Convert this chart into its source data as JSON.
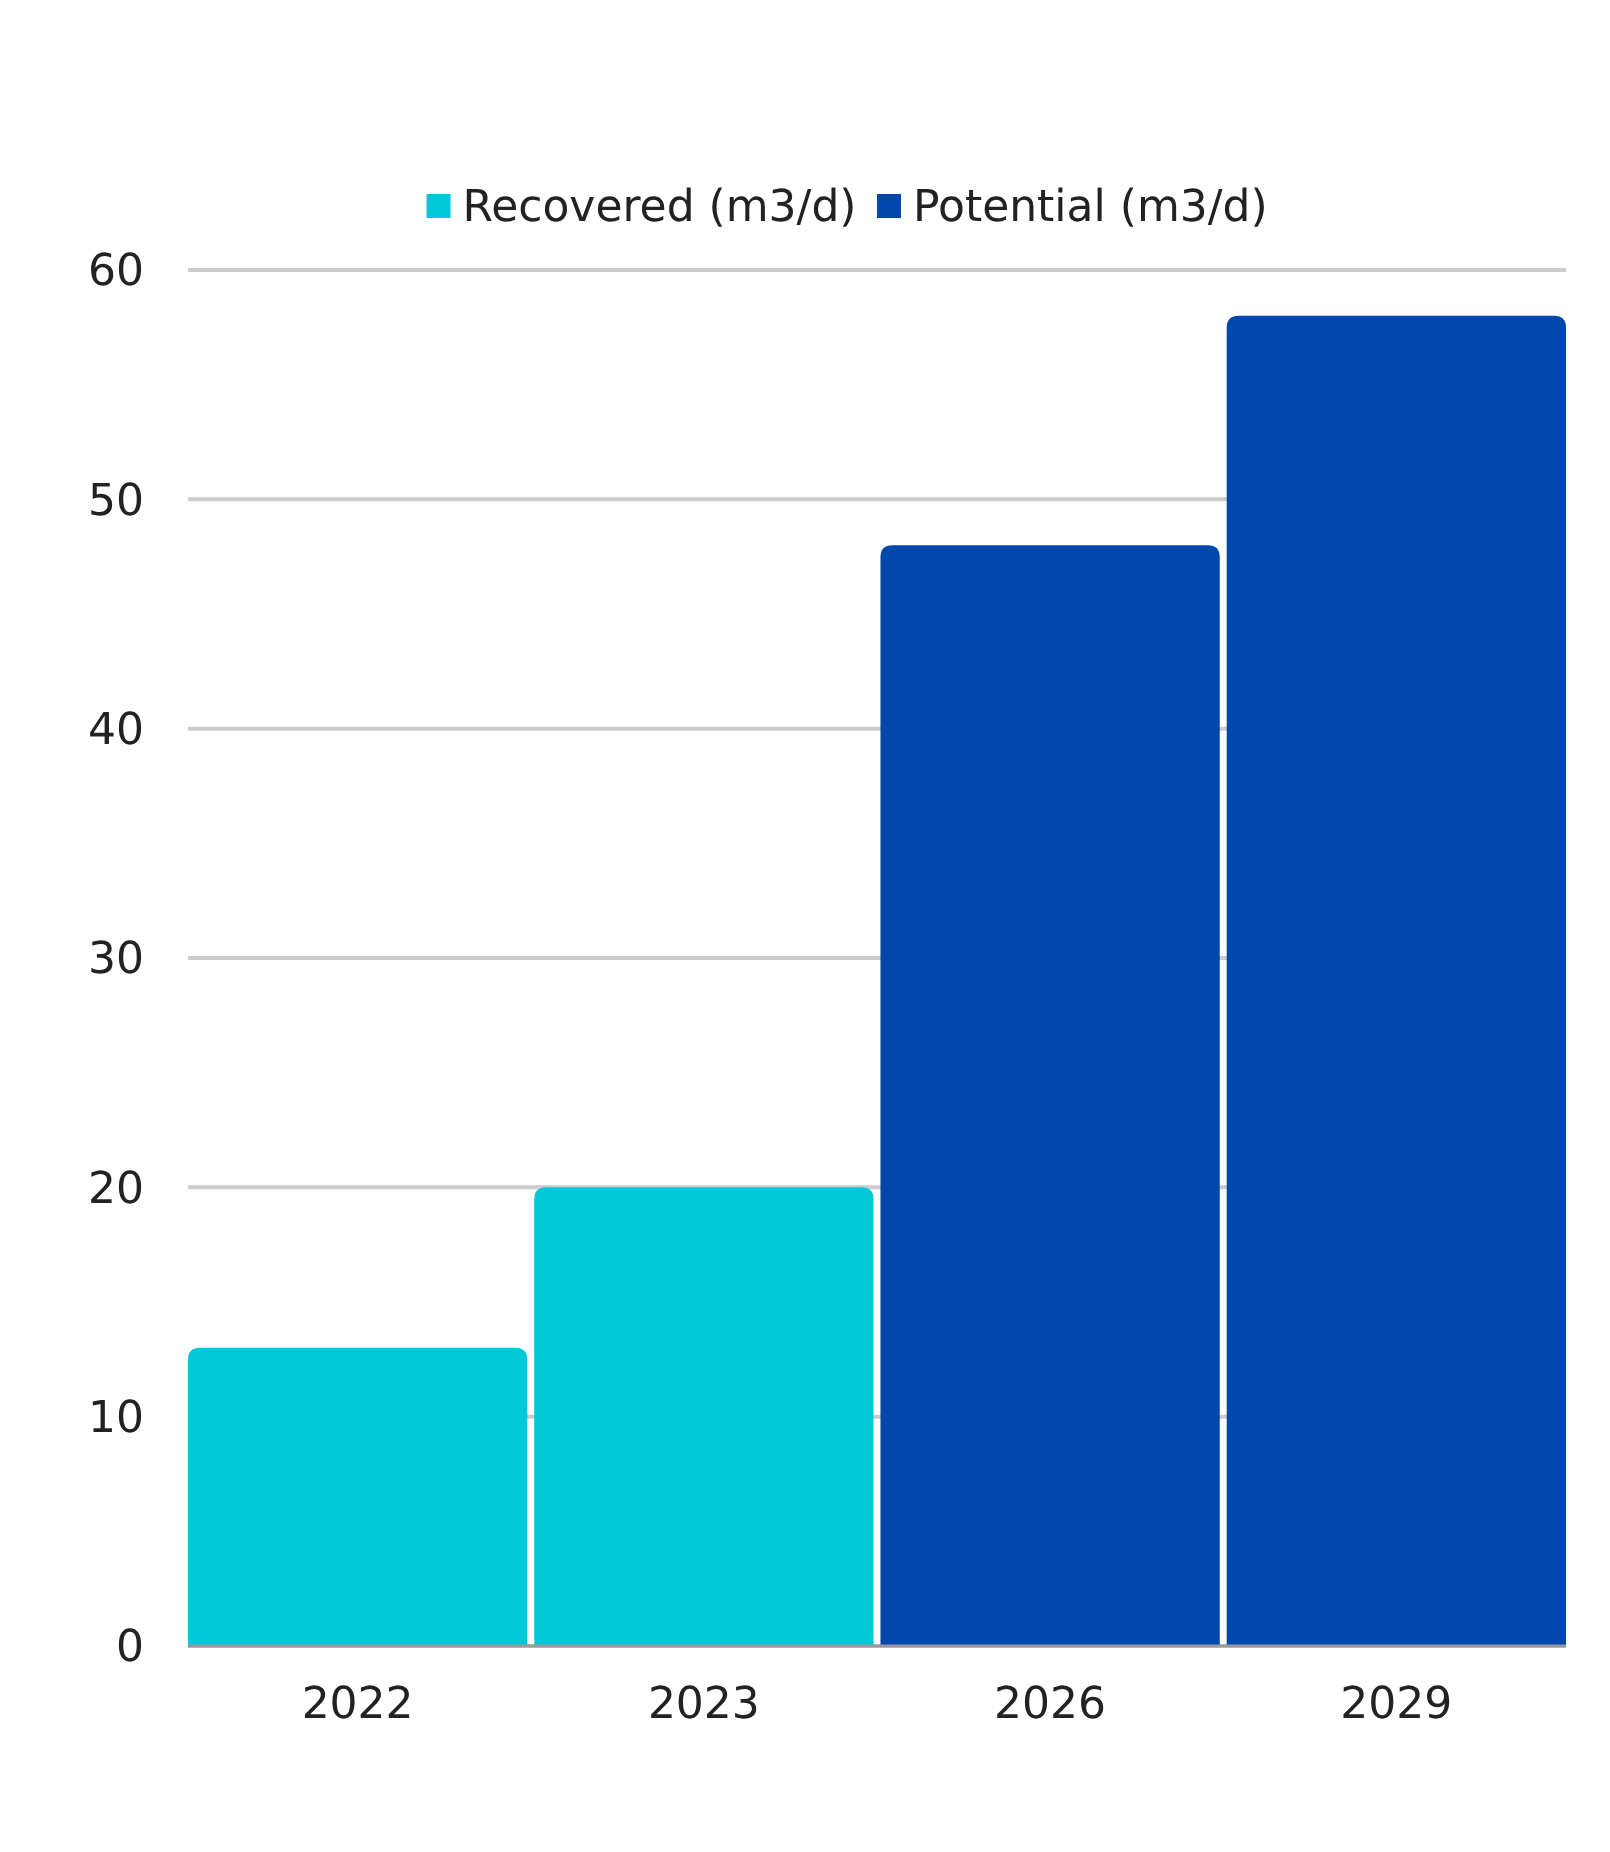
{
  "chart_data": {
    "type": "bar",
    "categories": [
      "2022",
      "2023",
      "2026",
      "2029"
    ],
    "stacked": true,
    "series": [
      {
        "name": "Recovered (m3/d)",
        "color": "#00c8d8",
        "values": [
          13,
          20,
          null,
          null
        ]
      },
      {
        "name": "Potential (m3/d)",
        "color": "#0047ab",
        "values": [
          null,
          null,
          48,
          58
        ]
      }
    ],
    "ylim": [
      0,
      60
    ],
    "yticks": [
      0,
      10,
      20,
      30,
      40,
      50,
      60
    ],
    "grid": "y",
    "legend": "top"
  }
}
